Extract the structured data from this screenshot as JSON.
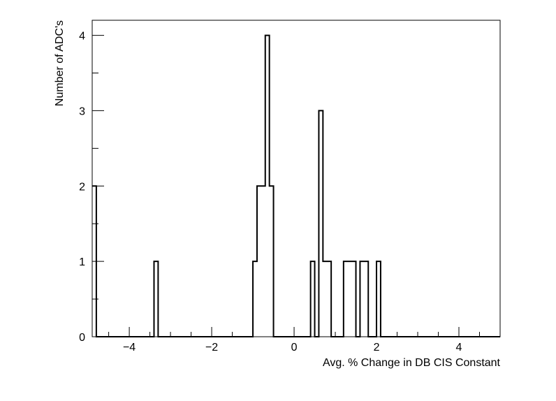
{
  "chart_data": {
    "type": "bar",
    "style": "step-histogram",
    "xlabel": "Avg. % Change in DB CIS Constant",
    "ylabel": "Number of ADC's",
    "xlim": [
      -4.9,
      5.0
    ],
    "ylim": [
      0,
      4.2
    ],
    "grid": false,
    "legend": "none",
    "x_ticks": [
      -4,
      -2,
      0,
      2,
      4
    ],
    "x_tick_labels": [
      "−4",
      "−2",
      "0",
      "2",
      "4"
    ],
    "y_ticks": [
      0,
      1,
      2,
      3,
      4
    ],
    "y_tick_labels": [
      "0",
      "1",
      "2",
      "3",
      "4"
    ],
    "bin_width": 0.1,
    "bins": [
      {
        "x0": -4.9,
        "x1": -4.8,
        "count": 2
      },
      {
        "x0": -3.4,
        "x1": -3.3,
        "count": 1
      },
      {
        "x0": -1.0,
        "x1": -0.9,
        "count": 1
      },
      {
        "x0": -0.9,
        "x1": -0.8,
        "count": 2
      },
      {
        "x0": -0.8,
        "x1": -0.7,
        "count": 2
      },
      {
        "x0": -0.7,
        "x1": -0.6,
        "count": 4
      },
      {
        "x0": -0.6,
        "x1": -0.5,
        "count": 2
      },
      {
        "x0": 0.4,
        "x1": 0.5,
        "count": 1
      },
      {
        "x0": 0.6,
        "x1": 0.7,
        "count": 3
      },
      {
        "x0": 0.7,
        "x1": 0.8,
        "count": 1
      },
      {
        "x0": 0.8,
        "x1": 0.9,
        "count": 1
      },
      {
        "x0": 1.2,
        "x1": 1.3,
        "count": 1
      },
      {
        "x0": 1.3,
        "x1": 1.4,
        "count": 1
      },
      {
        "x0": 1.4,
        "x1": 1.5,
        "count": 1
      },
      {
        "x0": 1.6,
        "x1": 1.7,
        "count": 1
      },
      {
        "x0": 1.7,
        "x1": 1.8,
        "count": 1
      },
      {
        "x0": 2.0,
        "x1": 2.1,
        "count": 1
      }
    ],
    "colors": {
      "line": "#000000",
      "background": "#ffffff"
    }
  }
}
